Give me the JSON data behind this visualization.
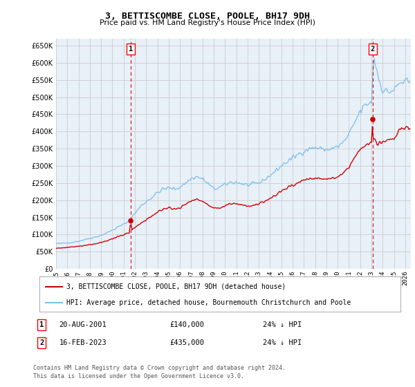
{
  "title": "3, BETTISCOMBE CLOSE, POOLE, BH17 9DH",
  "subtitle": "Price paid vs. HM Land Registry's House Price Index (HPI)",
  "ylabel_ticks": [
    0,
    50000,
    100000,
    150000,
    200000,
    250000,
    300000,
    350000,
    400000,
    450000,
    500000,
    550000,
    600000,
    650000
  ],
  "ylim": [
    0,
    670000
  ],
  "hpi_color": "#7bbfea",
  "price_color": "#cc0000",
  "marker_color": "#cc0000",
  "transaction1": {
    "date": "20-AUG-2001",
    "price": 140000,
    "label": "1",
    "hpi_diff": "24% ↓ HPI",
    "x_year": 2001.64
  },
  "transaction2": {
    "date": "16-FEB-2023",
    "price": 435000,
    "label": "2",
    "hpi_diff": "24% ↓ HPI",
    "x_year": 2023.12
  },
  "legend_line1": "3, BETTISCOMBE CLOSE, POOLE, BH17 9DH (detached house)",
  "legend_line2": "HPI: Average price, detached house, Bournemouth Christchurch and Poole",
  "footer1": "Contains HM Land Registry data © Crown copyright and database right 2024.",
  "footer2": "This data is licensed under the Open Government Licence v3.0.",
  "xlim": [
    1995.0,
    2026.5
  ],
  "xticks": [
    1995,
    1996,
    1997,
    1998,
    1999,
    2000,
    2001,
    2002,
    2003,
    2004,
    2005,
    2006,
    2007,
    2008,
    2009,
    2010,
    2011,
    2012,
    2013,
    2014,
    2015,
    2016,
    2017,
    2018,
    2019,
    2020,
    2021,
    2022,
    2023,
    2024,
    2025,
    2026
  ],
  "grid_color": "#cccccc",
  "bg_color": "#ffffff",
  "plot_bg_color": "#e8f0f8"
}
